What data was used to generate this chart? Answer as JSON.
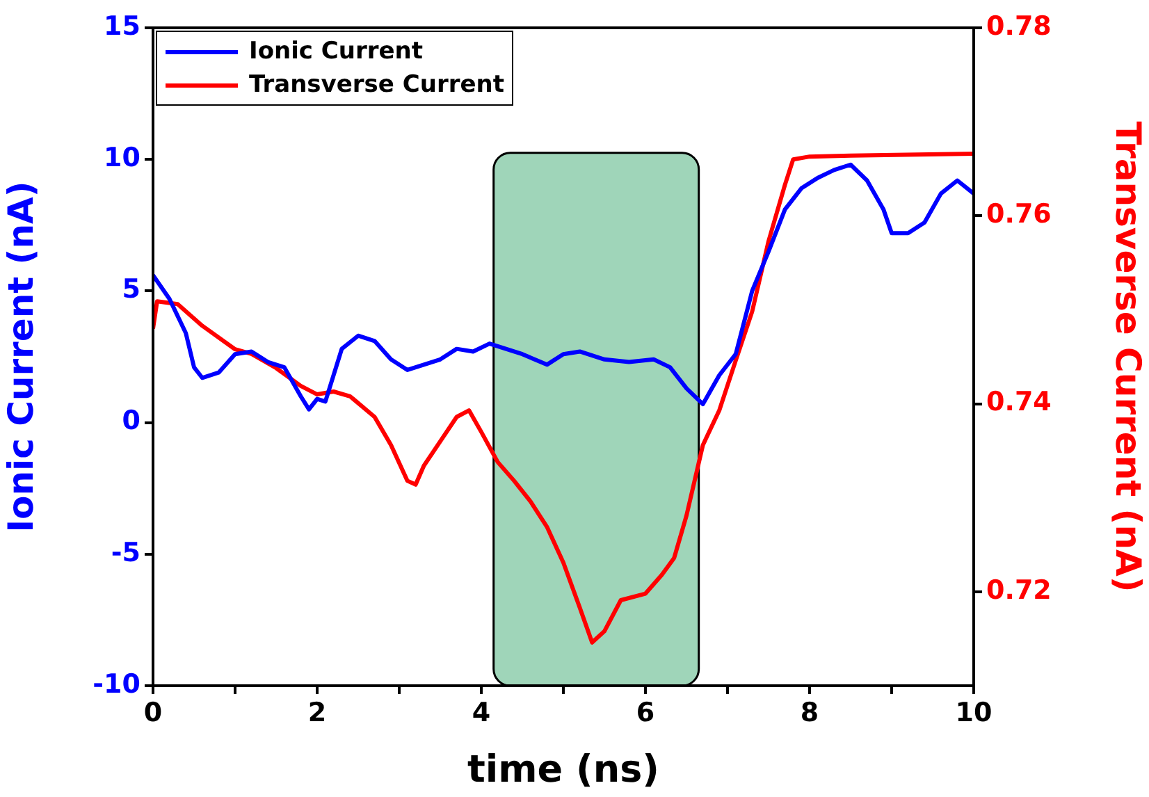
{
  "chart_data": {
    "type": "line",
    "xlabel": "time (ns)",
    "ylabel": "Ionic Current (nA)",
    "y2label": "Transverse Current (nA)",
    "xlim": [
      0,
      10
    ],
    "xticks": [
      0,
      {
        "value": 1,
        "label": null
      },
      2,
      {
        "value": 3,
        "label": null
      },
      4,
      {
        "value": 5,
        "label": null
      },
      6,
      {
        "value": 7,
        "label": null
      },
      8,
      {
        "value": 9,
        "label": null
      },
      10
    ],
    "ylim": [
      -10,
      15
    ],
    "yticks": [
      -10,
      -5,
      0,
      5,
      10,
      15
    ],
    "y2lim": [
      0.71,
      0.78
    ],
    "y2ticks": [
      0.72,
      0.74,
      0.76,
      0.78
    ],
    "grid": false,
    "legend": "top left",
    "marker": "none",
    "line_style": "solid",
    "bands": [
      {
        "axis": "x",
        "from": 4.15,
        "to": 6.65,
        "color": "#9fd5b9"
      }
    ],
    "series": [
      {
        "name": "Ionic Current",
        "color": "#0000ff",
        "x": [
          0,
          0.2,
          0.4,
          0.5,
          0.6,
          0.8,
          1.0,
          1.2,
          1.4,
          1.6,
          1.8,
          1.9,
          2.0,
          2.1,
          2.3,
          2.5,
          2.7,
          2.9,
          3.1,
          3.3,
          3.5,
          3.7,
          3.9,
          4.1,
          4.3,
          4.5,
          4.8,
          5.0,
          5.2,
          5.5,
          5.8,
          6.1,
          6.3,
          6.5,
          6.7,
          6.9,
          7.1,
          7.3,
          7.5,
          7.7,
          7.9,
          8.1,
          8.3,
          8.5,
          8.7,
          8.9,
          9.0,
          9.2,
          9.4,
          9.6,
          9.8,
          10
        ],
        "values": [
          5.6,
          4.7,
          3.4,
          2.1,
          1.7,
          1.9,
          2.6,
          2.7,
          2.3,
          2.1,
          1.0,
          0.5,
          0.9,
          0.8,
          2.8,
          3.3,
          3.1,
          2.4,
          2.0,
          2.2,
          2.4,
          2.8,
          2.7,
          3.0,
          2.8,
          2.6,
          2.2,
          2.6,
          2.7,
          2.4,
          2.3,
          2.4,
          2.1,
          1.3,
          0.7,
          1.8,
          2.6,
          5.0,
          6.5,
          8.1,
          8.9,
          9.3,
          9.6,
          9.8,
          9.2,
          8.1,
          7.2,
          7.2,
          7.6,
          8.7,
          9.2,
          8.7
        ]
      },
      {
        "name": "Transverse Current",
        "color": "#ff0000",
        "axis": "y2",
        "x": [
          0,
          0.05,
          0.3,
          0.6,
          1.0,
          1.2,
          1.5,
          1.8,
          2.0,
          2.2,
          2.4,
          2.7,
          2.9,
          3.1,
          3.2,
          3.3,
          3.5,
          3.7,
          3.85,
          4.0,
          4.2,
          4.4,
          4.6,
          4.8,
          5.0,
          5.2,
          5.35,
          5.5,
          5.7,
          6.0,
          6.2,
          6.35,
          6.5,
          6.7,
          6.9,
          7.1,
          7.3,
          7.5,
          7.7,
          7.8,
          8.0,
          8.5,
          10
        ],
        "values": [
          0.748,
          0.7509,
          0.7506,
          0.7483,
          0.7458,
          0.7453,
          0.7438,
          0.7419,
          0.741,
          0.7413,
          0.7408,
          0.7386,
          0.7356,
          0.7318,
          0.7314,
          0.7334,
          0.736,
          0.7386,
          0.7393,
          0.737,
          0.7338,
          0.7318,
          0.7296,
          0.7269,
          0.7231,
          0.7183,
          0.7146,
          0.7158,
          0.7191,
          0.7198,
          0.7218,
          0.7236,
          0.7281,
          0.7356,
          0.7393,
          0.7446,
          0.7498,
          0.7573,
          0.7633,
          0.766,
          0.7663,
          0.7664,
          0.7666
        ]
      }
    ]
  }
}
